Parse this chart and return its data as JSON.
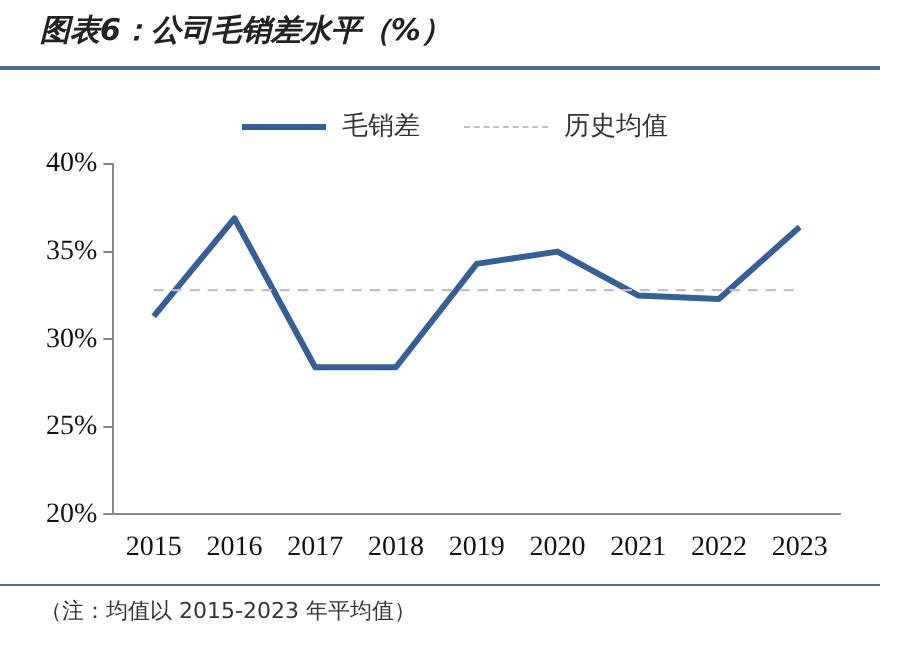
{
  "chart_data": {
    "type": "line",
    "title": "图表6：公司毛销差水平（%）",
    "categories": [
      "2015",
      "2016",
      "2017",
      "2018",
      "2019",
      "2020",
      "2021",
      "2022",
      "2023"
    ],
    "series": [
      {
        "name": "毛销差",
        "color": "#365f95",
        "values": [
          31.3,
          36.9,
          28.4,
          28.4,
          34.3,
          35.0,
          32.5,
          32.3,
          36.4
        ]
      }
    ],
    "ref_lines": [
      {
        "axis": "y",
        "value": 32.8,
        "label": "历史均值",
        "color": "#bfbfbf",
        "line_style": "dashed"
      }
    ],
    "ylim": [
      20,
      40
    ],
    "yticks": [
      {
        "value": 20,
        "label": "20%"
      },
      {
        "value": 25,
        "label": "25%"
      },
      {
        "value": 30,
        "label": "30%"
      },
      {
        "value": 35,
        "label": "35%"
      },
      {
        "value": 40,
        "label": "40%"
      }
    ],
    "grid": false,
    "legend": "top",
    "marker": "none",
    "line_style": "solid",
    "annotations": [
      "（注：均值以 2015-2023 年平均值）"
    ]
  }
}
